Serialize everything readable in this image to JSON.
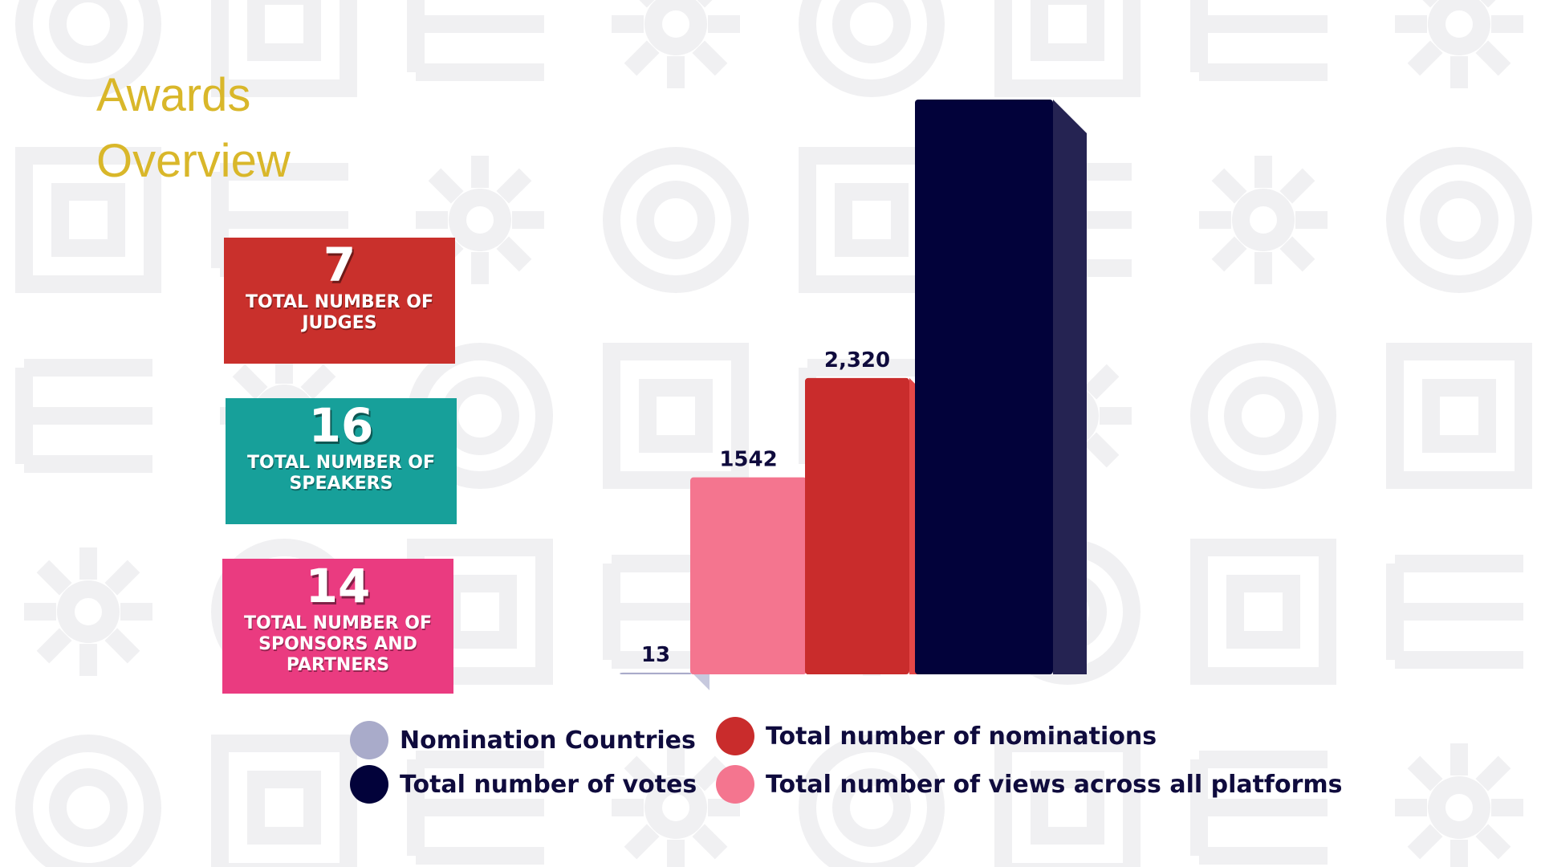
{
  "header": {
    "title": "Awards Overview"
  },
  "stats": [
    {
      "value": "7",
      "label": "TOTAL NUMBER OF JUDGES",
      "color": "#c9302c"
    },
    {
      "value": "16",
      "label": "TOTAL NUMBER OF SPEAKERS",
      "color": "#17a09a"
    },
    {
      "value": "14",
      "label": "TOTAL NUMBER OF SPONSORS AND PARTNERS",
      "color": "#ea3b80"
    }
  ],
  "colors": {
    "title": "#d9b72a",
    "text": "#0f0b3d"
  },
  "chart_data": {
    "type": "bar",
    "title": "",
    "xlabel": "",
    "ylabel": "",
    "categories": [
      "Nomination Countries",
      "Total number of views across all platforms",
      "Total number of nominations",
      "Total number of votes"
    ],
    "values": [
      13,
      1542,
      2320,
      4500
    ],
    "data_labels": [
      "13",
      "1542",
      "2,320",
      ""
    ],
    "colors": [
      "#a9abca",
      "#f4758f",
      "#c92c2c",
      "#02023a"
    ],
    "side_colors": [
      "#c7c9de",
      "#d45d7b",
      "#e54747",
      "#252352"
    ],
    "ylim": [
      0,
      4500
    ],
    "legend": [
      {
        "label": "Nomination Countries",
        "color": "#a9abca"
      },
      {
        "label": "Total number of nominations",
        "color": "#c92c2c"
      },
      {
        "label": "Total number of votes",
        "color": "#02023a"
      },
      {
        "label": "Total number of views across all platforms",
        "color": "#f4758f"
      }
    ]
  }
}
